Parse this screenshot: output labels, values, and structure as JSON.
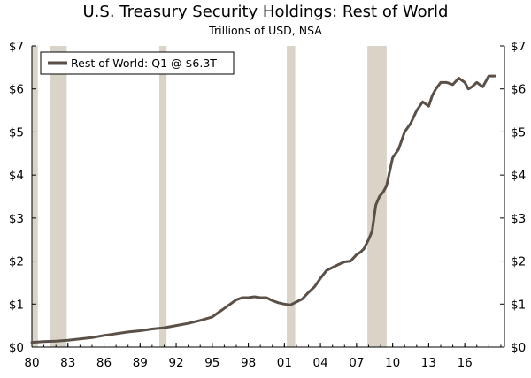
{
  "chart_data": {
    "type": "line",
    "title": "U.S. Treasury Security Holdings: Rest of World",
    "subtitle": "Trillions of USD, NSA",
    "xlabel": "",
    "ylabel": "",
    "xlim": [
      1980,
      2019.3
    ],
    "ylim": [
      0,
      7
    ],
    "x_ticks": [
      {
        "value": 1980,
        "label": "80"
      },
      {
        "value": 1983,
        "label": "83"
      },
      {
        "value": 1986,
        "label": "86"
      },
      {
        "value": 1989,
        "label": "89"
      },
      {
        "value": 1992,
        "label": "92"
      },
      {
        "value": 1995,
        "label": "95"
      },
      {
        "value": 1998,
        "label": "98"
      },
      {
        "value": 2001,
        "label": "01"
      },
      {
        "value": 2004,
        "label": "04"
      },
      {
        "value": 2007,
        "label": "07"
      },
      {
        "value": 2010,
        "label": "10"
      },
      {
        "value": 2013,
        "label": "13"
      },
      {
        "value": 2016,
        "label": "16"
      }
    ],
    "y_ticks": [
      {
        "value": 0,
        "label": "$0"
      },
      {
        "value": 1,
        "label": "$1"
      },
      {
        "value": 2,
        "label": "$2"
      },
      {
        "value": 3,
        "label": "$3"
      },
      {
        "value": 4,
        "label": "$4"
      },
      {
        "value": 5,
        "label": "$5"
      },
      {
        "value": 6,
        "label": "$6"
      },
      {
        "value": 7,
        "label": "$7"
      }
    ],
    "recessions": [
      [
        1980.0,
        1980.5
      ],
      [
        1981.5,
        1982.9
      ],
      [
        1990.6,
        1991.2
      ],
      [
        2001.2,
        2001.9
      ],
      [
        2007.9,
        2009.5
      ]
    ],
    "legend": {
      "label": "Rest of World: Q1 @ $6.3T",
      "placement": "top-left"
    },
    "colors": {
      "line": "#5a5048",
      "recession": "#d9d4c7",
      "axis": "#000000"
    },
    "series": [
      {
        "name": "Rest of World",
        "x": [
          1980,
          1981,
          1982,
          1983,
          1984,
          1985,
          1986,
          1987,
          1988,
          1989,
          1990,
          1991,
          1992,
          1993,
          1994,
          1995,
          1995.5,
          1996,
          1996.5,
          1997,
          1997.5,
          1998,
          1998.5,
          1999,
          1999.5,
          2000,
          2000.5,
          2001,
          2001.5,
          2002,
          2002.5,
          2003,
          2003.5,
          2004,
          2004.5,
          2005,
          2005.5,
          2006,
          2006.5,
          2007,
          2007.3,
          2007.6,
          2008,
          2008.3,
          2008.6,
          2008.9,
          2009.2,
          2009.5,
          2010,
          2010.5,
          2011,
          2011.5,
          2012,
          2012.5,
          2013,
          2013.3,
          2013.6,
          2014,
          2014.5,
          2015,
          2015.5,
          2016,
          2016.3,
          2016.6,
          2017,
          2017.5,
          2018,
          2018.5
        ],
        "values": [
          0.11,
          0.13,
          0.14,
          0.16,
          0.19,
          0.22,
          0.27,
          0.31,
          0.35,
          0.38,
          0.42,
          0.45,
          0.5,
          0.55,
          0.62,
          0.7,
          0.8,
          0.9,
          1.0,
          1.1,
          1.15,
          1.15,
          1.17,
          1.15,
          1.15,
          1.08,
          1.03,
          1.0,
          0.98,
          1.05,
          1.12,
          1.27,
          1.4,
          1.6,
          1.78,
          1.85,
          1.92,
          1.98,
          2.0,
          2.15,
          2.2,
          2.28,
          2.5,
          2.7,
          3.3,
          3.5,
          3.6,
          3.75,
          4.4,
          4.6,
          5.0,
          5.2,
          5.5,
          5.7,
          5.6,
          5.85,
          6.0,
          6.15,
          6.15,
          6.1,
          6.25,
          6.15,
          6.0,
          6.05,
          6.15,
          6.05,
          6.3,
          6.3
        ]
      }
    ]
  }
}
